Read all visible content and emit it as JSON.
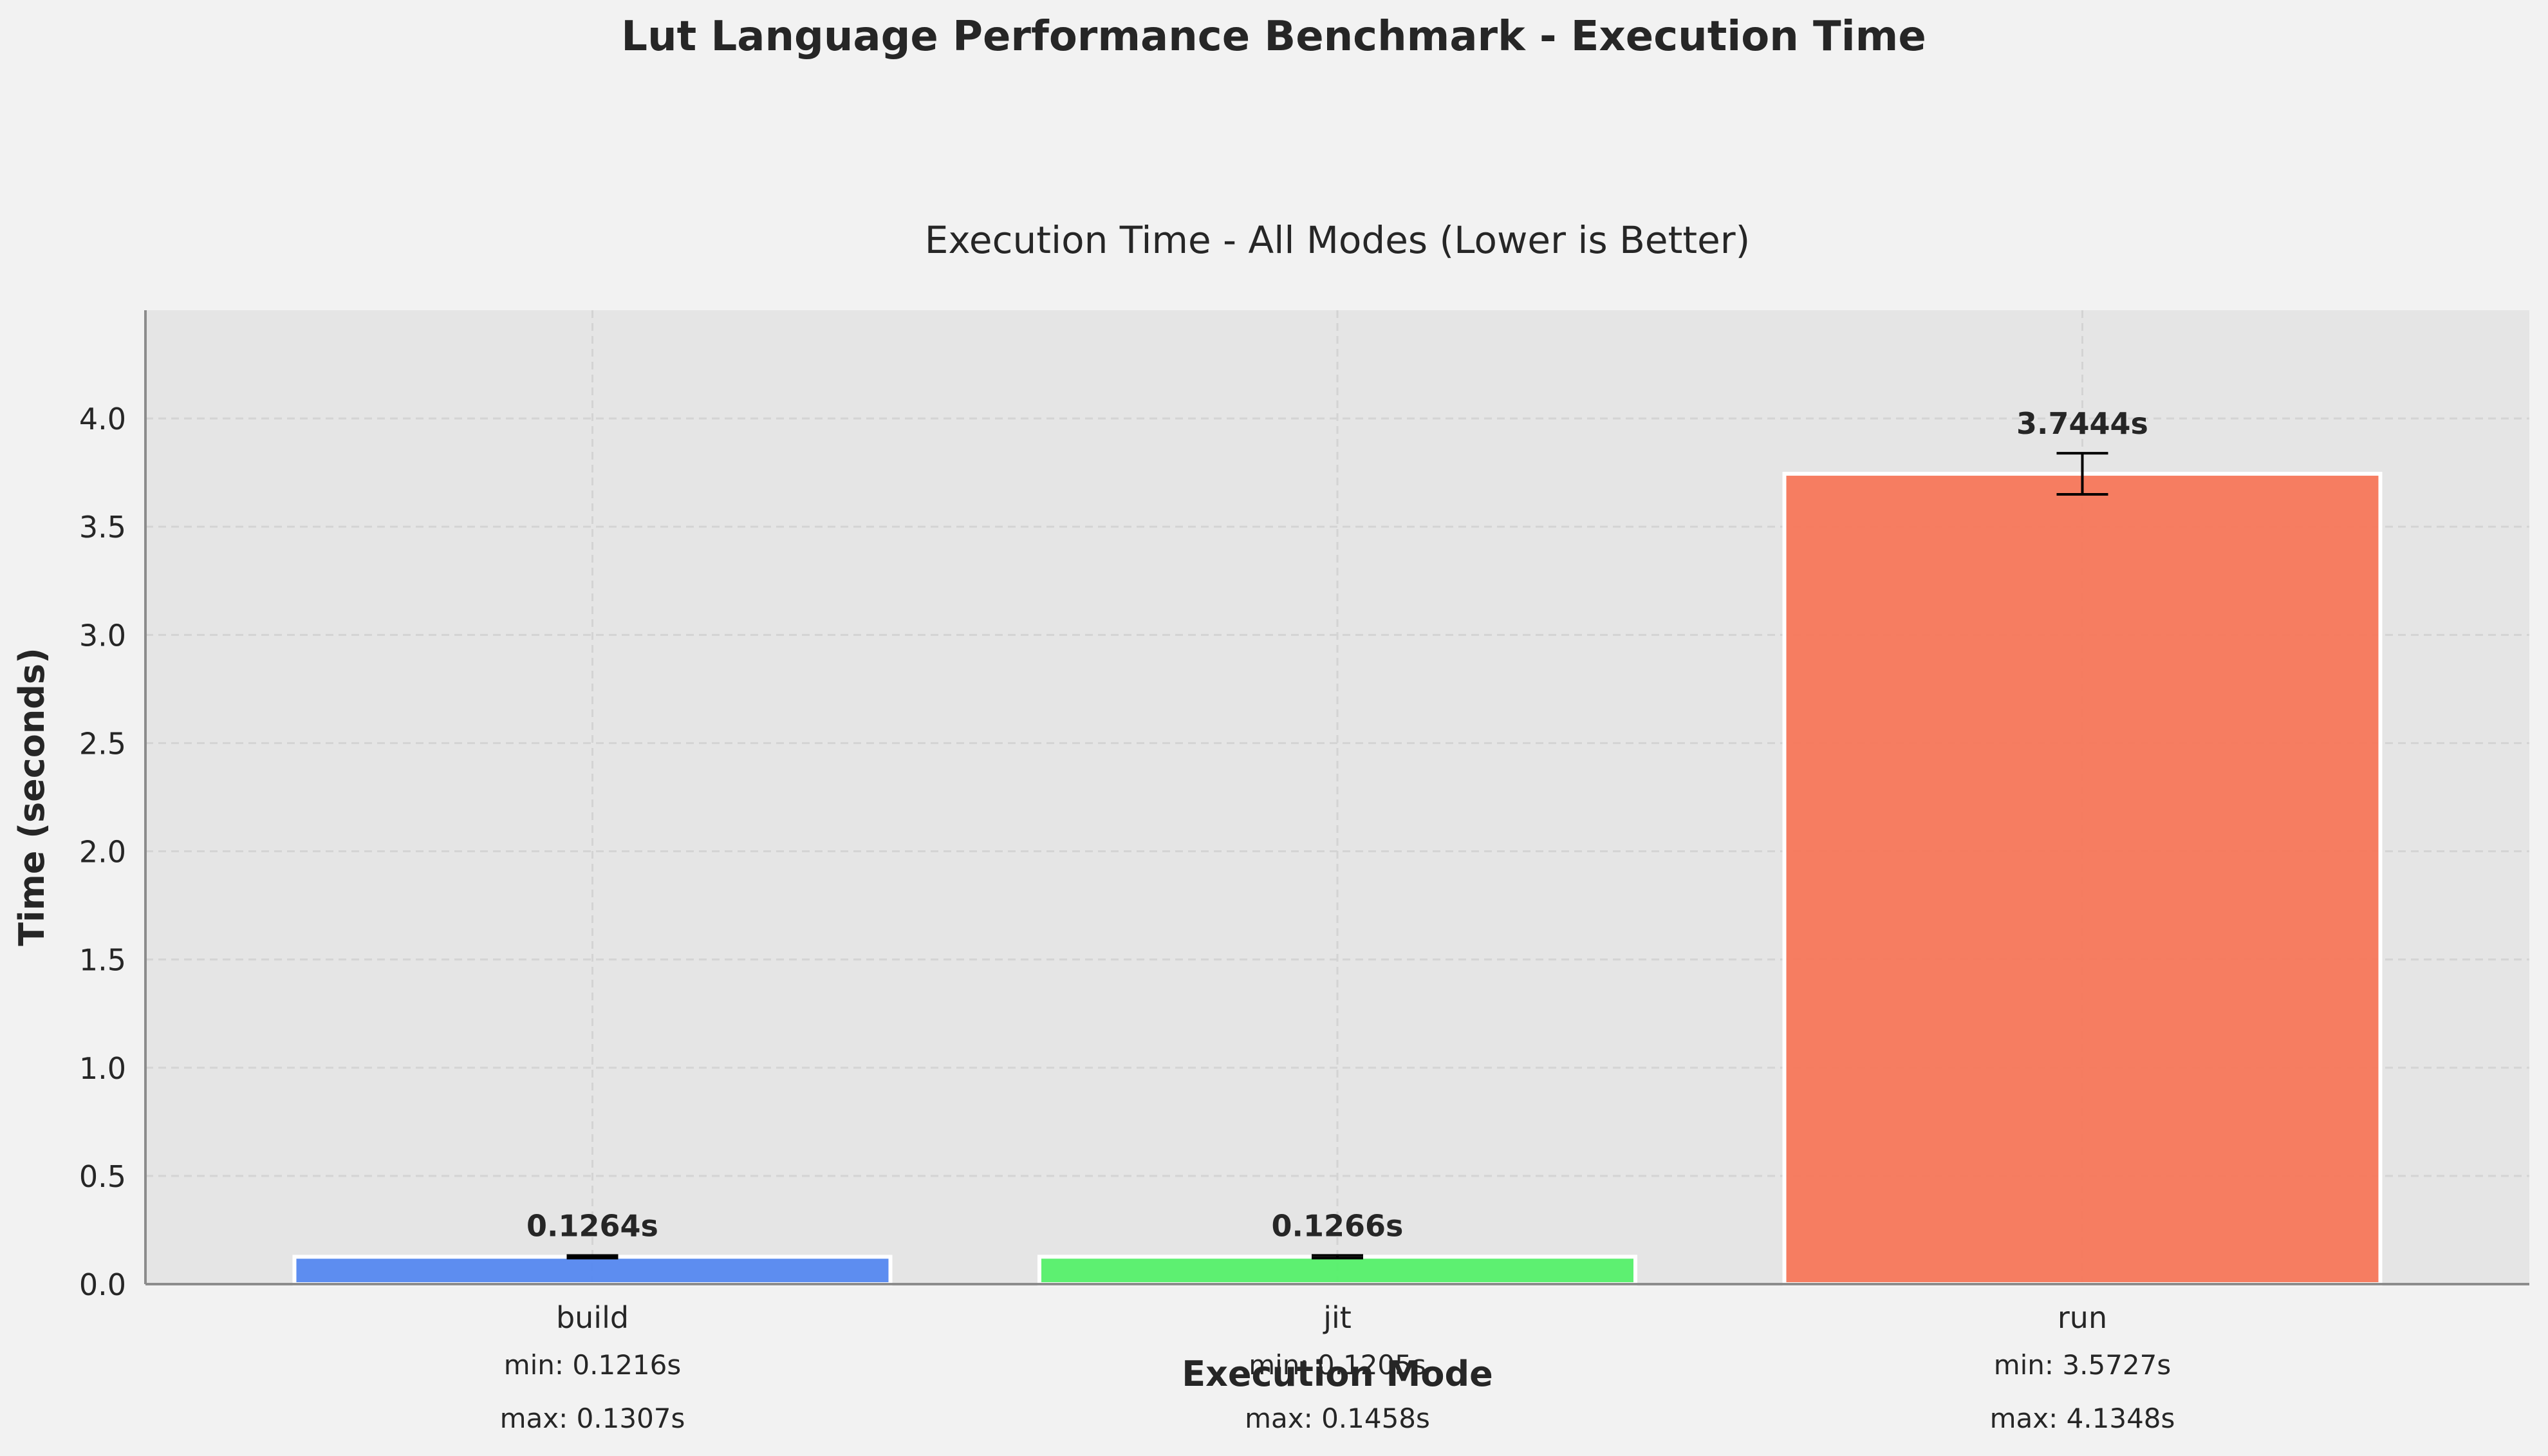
{
  "chart_data": {
    "type": "bar",
    "suptitle": "Lut Language Performance Benchmark - Execution Time",
    "title": "Execution Time - All Modes (Lower is Better)",
    "xlabel": "Execution Mode",
    "ylabel": "Time (seconds)",
    "ylim": [
      0,
      4.5
    ],
    "yticks": [
      0.0,
      0.5,
      1.0,
      1.5,
      2.0,
      2.5,
      3.0,
      3.5,
      4.0
    ],
    "ytick_labels": [
      "0.0",
      "0.5",
      "1.0",
      "1.5",
      "2.0",
      "2.5",
      "3.0",
      "3.5",
      "4.0"
    ],
    "grid": true,
    "categories": [
      "build",
      "jit",
      "run"
    ],
    "values": [
      0.1264,
      0.1266,
      3.7444
    ],
    "value_labels": [
      "0.1264s",
      "0.1266s",
      "3.7444s"
    ],
    "error": [
      0.006,
      0.006,
      0.095
    ],
    "min_labels": [
      "min: 0.1216s",
      "min: 0.1205s",
      "min: 3.5727s"
    ],
    "max_labels": [
      "max: 0.1307s",
      "max: 0.1458s",
      "max: 4.1348s"
    ],
    "colors": [
      "#5588f0",
      "#55f06a",
      "#f7775a"
    ],
    "colors_meaning": "one fill color per category bar: build, jit, run"
  }
}
